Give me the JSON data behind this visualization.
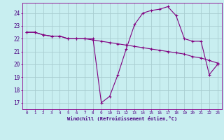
{
  "line1_x": [
    0,
    1,
    2,
    3,
    4,
    5,
    6,
    7,
    8,
    9,
    10,
    11,
    12,
    13,
    14,
    15,
    16,
    17,
    18,
    19,
    20,
    21,
    22,
    23
  ],
  "line1_y": [
    22.5,
    22.5,
    22.3,
    22.2,
    22.2,
    22.0,
    22.0,
    22.0,
    21.9,
    21.8,
    21.7,
    21.6,
    21.5,
    21.4,
    21.3,
    21.2,
    21.1,
    21.0,
    20.9,
    20.8,
    20.6,
    20.5,
    20.3,
    20.1
  ],
  "line2_x": [
    0,
    1,
    2,
    3,
    4,
    5,
    6,
    7,
    8,
    9,
    10,
    11,
    12,
    13,
    14,
    15,
    16,
    17,
    18,
    19,
    20,
    21,
    22,
    23
  ],
  "line2_y": [
    22.5,
    22.5,
    22.3,
    22.2,
    22.2,
    22.0,
    22.0,
    22.0,
    22.0,
    17.0,
    17.5,
    19.2,
    21.2,
    23.1,
    24.0,
    24.2,
    24.3,
    24.5,
    23.8,
    22.0,
    21.8,
    21.8,
    19.2,
    20.0
  ],
  "line_color": "#800080",
  "bg_color": "#c8eef0",
  "grid_color": "#a8cdd0",
  "xlabel": "Windchill (Refroidissement éolien,°C)",
  "yticks": [
    17,
    18,
    19,
    20,
    21,
    22,
    23,
    24
  ],
  "xtick_labels": [
    "0",
    "1",
    "2",
    "3",
    "4",
    "5",
    "6",
    "7",
    "8",
    "9",
    "10",
    "11",
    "12",
    "13",
    "14",
    "15",
    "16",
    "17",
    "18",
    "19",
    "20",
    "21",
    "22",
    "23"
  ],
  "ylim": [
    16.5,
    24.8
  ],
  "xlim": [
    -0.5,
    23.5
  ]
}
